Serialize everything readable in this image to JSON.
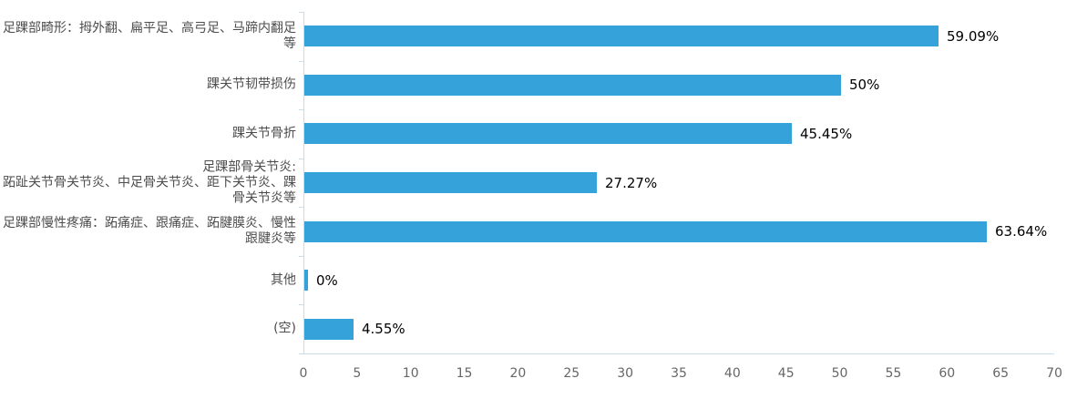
{
  "chart_data": {
    "type": "bar",
    "orientation": "horizontal",
    "title": "",
    "xlabel": "",
    "ylabel": "",
    "xlim": [
      0,
      70
    ],
    "x_ticks": [
      0,
      5,
      10,
      15,
      20,
      25,
      30,
      35,
      40,
      45,
      50,
      55,
      60,
      65,
      70
    ],
    "grid": false,
    "legend": false,
    "categories": [
      [
        "足踝部畸形：拇外翻、扁平足、高弓足、马蹄内翻足等"
      ],
      [
        "踝关节韧带损伤"
      ],
      [
        "踝关节骨折"
      ],
      [
        "足踝部骨关节炎:",
        "跖趾关节骨关节炎、中足骨关节炎、距下关节炎、踝骨关节炎等"
      ],
      [
        "足踝部慢性疼痛：跖痛症、跟痛症、跖腱膜炎、慢性跟腱炎等"
      ],
      [
        "其他"
      ],
      [
        "(空)"
      ]
    ],
    "values": [
      59.09,
      50,
      45.45,
      27.27,
      63.64,
      0,
      4.55
    ],
    "value_labels": [
      "59.09%",
      "50%",
      "45.45%",
      "27.27%",
      "63.64%",
      "0%",
      "4.55%"
    ],
    "colors": {
      "bar": "#36a2da",
      "axis": "#c9dcea",
      "x_tick_label": "#666666",
      "category_label": "#4d4d4d",
      "value_label": "#000000"
    }
  }
}
